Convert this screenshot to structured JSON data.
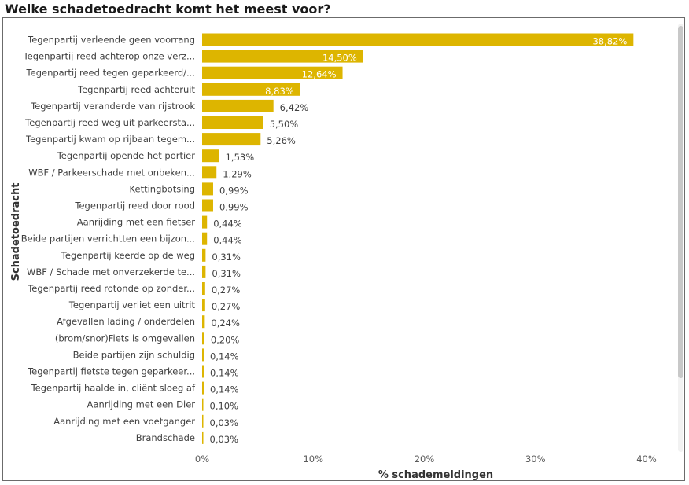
{
  "visual": {
    "title": "Welke schadetoedracht komt het meest voor?"
  },
  "chart_data": {
    "type": "bar",
    "orientation": "horizontal",
    "title": "Welke schadetoedracht komt het meest voor?",
    "ylabel": "Schadetoedracht",
    "xlabel": "% schademeldingen",
    "xlim": [
      0,
      40
    ],
    "x_ticks": [
      "0%",
      "10%",
      "20%",
      "30%",
      "40%"
    ],
    "bar_color": "#DDB500",
    "categories": [
      "Tegenpartij verleende geen voorrang",
      "Tegenpartij reed achterop onze verz...",
      "Tegenpartij reed tegen geparkeerd/...",
      "Tegenpartij reed achteruit",
      "Tegenpartij veranderde van rijstrook",
      "Tegenpartij reed weg uit parkeersta...",
      "Tegenpartij kwam op rijbaan tegem...",
      "Tegenpartij opende het portier",
      "WBF / Parkeerschade met onbeken...",
      "Kettingbotsing",
      "Tegenpartij reed door rood",
      "Aanrijding met een fietser",
      "Beide partijen verrichtten een bijzon...",
      "Tegenpartij keerde op de weg",
      "WBF / Schade met onverzekerde te...",
      "Tegenpartij reed rotonde op zonder...",
      "Tegenpartij verliet een uitrit",
      "Afgevallen lading / onderdelen",
      "(brom/snor)Fiets is omgevallen",
      "Beide partijen zijn schuldig",
      "Tegenpartij fietste tegen geparkeer...",
      "Tegenpartij haalde in, cliënt sloeg af",
      "Aanrijding met een Dier",
      "Aanrijding met een voetganger",
      "Brandschade"
    ],
    "values": [
      38.82,
      14.5,
      12.64,
      8.83,
      6.42,
      5.5,
      5.26,
      1.53,
      1.29,
      0.99,
      0.99,
      0.44,
      0.44,
      0.31,
      0.31,
      0.27,
      0.27,
      0.24,
      0.2,
      0.14,
      0.14,
      0.14,
      0.1,
      0.03,
      0.03
    ],
    "value_labels": [
      "38,82%",
      "14,50%",
      "12,64%",
      "8,83%",
      "6,42%",
      "5,50%",
      "5,26%",
      "1,53%",
      "1,29%",
      "0,99%",
      "0,99%",
      "0,44%",
      "0,44%",
      "0,31%",
      "0,31%",
      "0,27%",
      "0,27%",
      "0,24%",
      "0,20%",
      "0,14%",
      "0,14%",
      "0,14%",
      "0,10%",
      "0,03%",
      "0,03%"
    ]
  }
}
